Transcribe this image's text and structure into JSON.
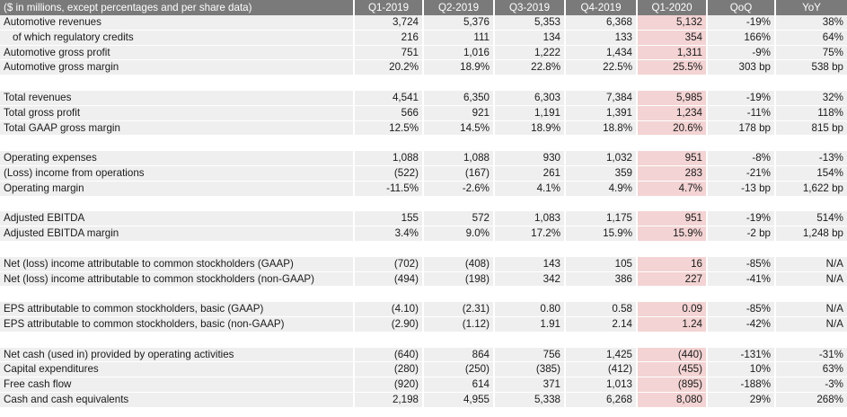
{
  "table": {
    "header_label": "($ in millions, except percentages and per share data)",
    "columns": [
      "Q1-2019",
      "Q2-2019",
      "Q3-2019",
      "Q4-2019",
      "Q1-2020",
      "QoQ",
      "YoY"
    ],
    "rows": [
      {
        "label": "Automotive revenues",
        "values": [
          "3,724",
          "5,376",
          "5,353",
          "6,368",
          "5,132",
          "-19%",
          "38%"
        ]
      },
      {
        "label": "of which regulatory credits",
        "indent": true,
        "values": [
          "216",
          "111",
          "134",
          "133",
          "354",
          "166%",
          "64%"
        ]
      },
      {
        "label": "Automotive gross profit",
        "values": [
          "751",
          "1,016",
          "1,222",
          "1,434",
          "1,311",
          "-9%",
          "75%"
        ]
      },
      {
        "label": "Automotive gross margin",
        "values": [
          "20.2%",
          "18.9%",
          "22.8%",
          "22.5%",
          "25.5%",
          "303 bp",
          "538 bp"
        ]
      },
      {
        "spacer": true
      },
      {
        "label": "Total revenues",
        "values": [
          "4,541",
          "6,350",
          "6,303",
          "7,384",
          "5,985",
          "-19%",
          "32%"
        ]
      },
      {
        "label": "Total gross profit",
        "values": [
          "566",
          "921",
          "1,191",
          "1,391",
          "1,234",
          "-11%",
          "118%"
        ]
      },
      {
        "label": "Total GAAP gross margin",
        "values": [
          "12.5%",
          "14.5%",
          "18.9%",
          "18.8%",
          "20.6%",
          "178 bp",
          "815 bp"
        ]
      },
      {
        "spacer": true
      },
      {
        "label": "Operating expenses",
        "values": [
          "1,088",
          "1,088",
          "930",
          "1,032",
          "951",
          "-8%",
          "-13%"
        ]
      },
      {
        "label": "(Loss) income from operations",
        "values": [
          "(522)",
          "(167)",
          "261",
          "359",
          "283",
          "-21%",
          "154%"
        ]
      },
      {
        "label": "Operating margin",
        "values": [
          "-11.5%",
          "-2.6%",
          "4.1%",
          "4.9%",
          "4.7%",
          "-13 bp",
          "1,622 bp"
        ]
      },
      {
        "spacer": true
      },
      {
        "label": "Adjusted EBITDA",
        "values": [
          "155",
          "572",
          "1,083",
          "1,175",
          "951",
          "-19%",
          "514%"
        ]
      },
      {
        "label": "Adjusted EBITDA margin",
        "values": [
          "3.4%",
          "9.0%",
          "17.2%",
          "15.9%",
          "15.9%",
          "-2 bp",
          "1,248 bp"
        ]
      },
      {
        "spacer": true
      },
      {
        "label": "Net (loss) income attributable to common stockholders (GAAP)",
        "values": [
          "(702)",
          "(408)",
          "143",
          "105",
          "16",
          "-85%",
          "N/A"
        ]
      },
      {
        "label": "Net (loss) income attributable to common stockholders (non-GAAP)",
        "values": [
          "(494)",
          "(198)",
          "342",
          "386",
          "227",
          "-41%",
          "N/A"
        ]
      },
      {
        "spacer": true
      },
      {
        "label": "EPS attributable to common stockholders, basic (GAAP)",
        "values": [
          "(4.10)",
          "(2.31)",
          "0.80",
          "0.58",
          "0.09",
          "-85%",
          "N/A"
        ]
      },
      {
        "label": "EPS attributable to common stockholders, basic (non-GAAP)",
        "values": [
          "(2.90)",
          "(1.12)",
          "1.91",
          "2.14",
          "1.24",
          "-42%",
          "N/A"
        ]
      },
      {
        "spacer": true
      },
      {
        "label": "Net cash (used in) provided by operating activities",
        "values": [
          "(640)",
          "864",
          "756",
          "1,425",
          "(440)",
          "-131%",
          "-31%"
        ]
      },
      {
        "label": "Capital expenditures",
        "values": [
          "(280)",
          "(250)",
          "(385)",
          "(412)",
          "(455)",
          "10%",
          "63%"
        ]
      },
      {
        "label": "Free cash flow",
        "values": [
          "(920)",
          "614",
          "371",
          "1,013",
          "(895)",
          "-188%",
          "-3%"
        ]
      },
      {
        "label": "Cash and cash equivalents",
        "values": [
          "2,198",
          "4,955",
          "5,338",
          "6,268",
          "8,080",
          "29%",
          "268%"
        ]
      }
    ]
  }
}
